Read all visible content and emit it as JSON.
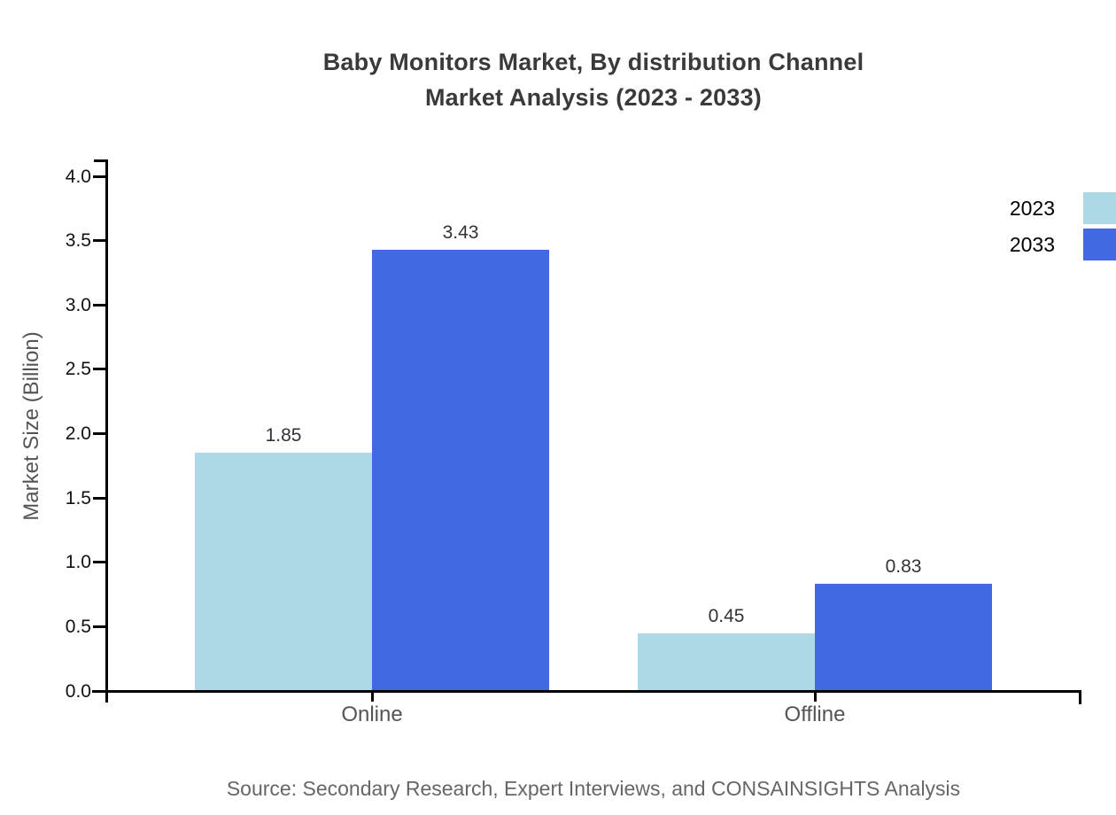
{
  "title": {
    "line1": "Baby Monitors Market, By distribution Channel",
    "line2": "Market Analysis (2023 - 2033)"
  },
  "source": {
    "text": "Source: Secondary Research, Expert Interviews, and CONSAINSIGHTS Analysis"
  },
  "chart_data": {
    "type": "bar",
    "title": "Baby Monitors Market, By distribution Channel Market Analysis (2023 - 2033)",
    "categories": [
      "Online",
      "Offline"
    ],
    "series": [
      {
        "name": "2023",
        "color": "#ADD8E6",
        "values": [
          1.85,
          0.45
        ]
      },
      {
        "name": "2033",
        "color": "#4169E1",
        "values": [
          3.43,
          0.83
        ]
      }
    ],
    "xlabel": "",
    "ylabel": "Market Size (Billion)",
    "ylim": [
      0,
      4.0
    ],
    "ytick_step": 0.5,
    "ytick_labels": [
      "0.0",
      "0.5",
      "1.0",
      "1.5",
      "2.0",
      "2.5",
      "3.0",
      "3.5",
      "4.0"
    ],
    "bar_value_labels": [
      "1.85",
      "3.43",
      "0.45",
      "0.83"
    ],
    "grid": false,
    "legend_position": "top-right",
    "colors": {
      "axis": "#000000",
      "title_text": "#3a3a3a",
      "tick_text": "#111111",
      "category_text": "#555555",
      "value_label_text": "#333333",
      "source_text": "#666666",
      "legend_text": "#000000"
    }
  }
}
